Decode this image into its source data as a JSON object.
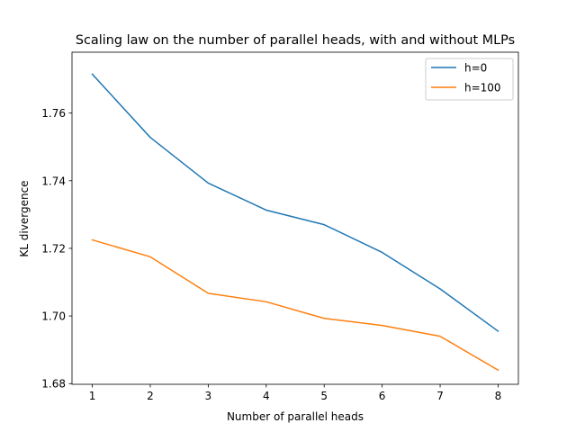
{
  "chart_data": {
    "type": "line",
    "title": "Scaling law on the number of parallel heads, with and without MLPs",
    "xlabel": "Number of parallel heads",
    "ylabel": "KL divergence",
    "x": [
      1,
      2,
      3,
      4,
      5,
      6,
      7,
      8
    ],
    "xticks": [
      "1",
      "2",
      "3",
      "4",
      "5",
      "6",
      "7",
      "8"
    ],
    "yticks": [
      "1.68",
      "1.70",
      "1.72",
      "1.74",
      "1.76"
    ],
    "xlim": [
      0.65,
      8.35
    ],
    "ylim": [
      1.6798,
      1.778
    ],
    "grid": false,
    "legend_position": "top-right",
    "series": [
      {
        "name": "h=0",
        "color": "#1f77b4",
        "values": [
          1.7715,
          1.7528,
          1.7393,
          1.7313,
          1.727,
          1.7188,
          1.708,
          1.6955
        ]
      },
      {
        "name": "h=100",
        "color": "#ff7f0e",
        "values": [
          1.7225,
          1.7175,
          1.7067,
          1.7042,
          1.6993,
          1.6972,
          1.694,
          1.684
        ]
      }
    ]
  }
}
